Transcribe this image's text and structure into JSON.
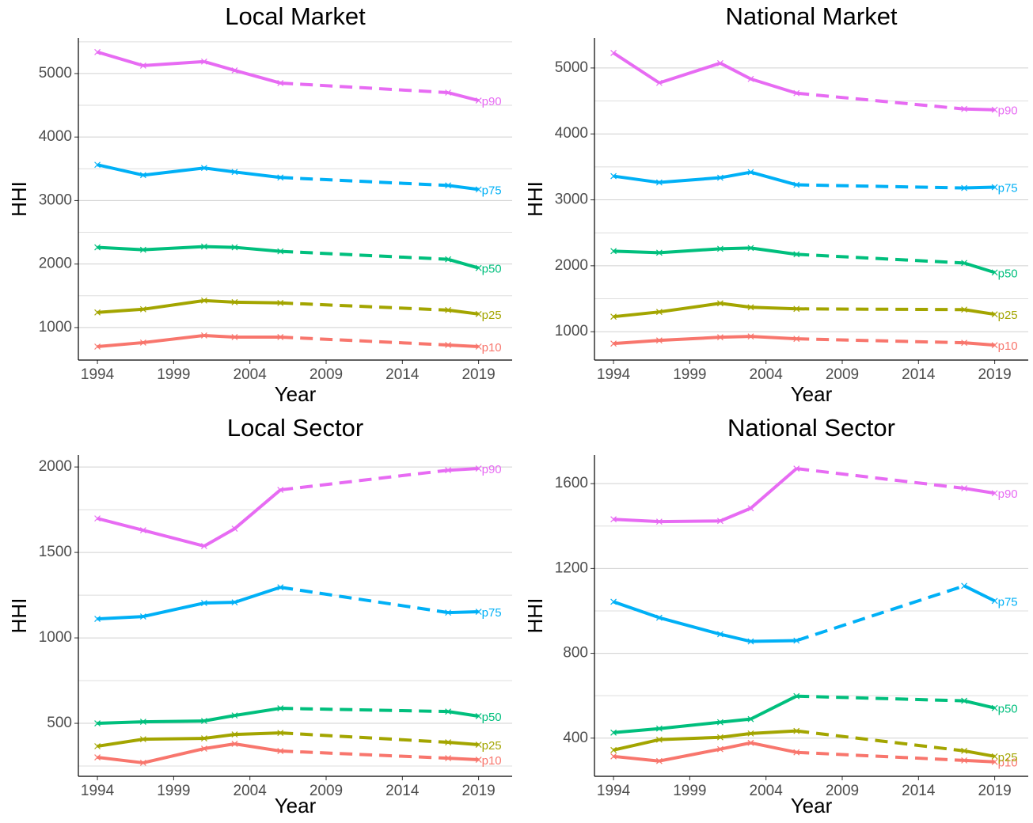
{
  "chart_data": [
    {
      "type": "line",
      "title": "Local Market",
      "x_label": "Year",
      "y_label": "HHI",
      "x": [
        1994,
        1997,
        2001,
        2003,
        2006,
        2017,
        2019
      ],
      "xlim": [
        1992.75,
        2021.2
      ],
      "xticks": [
        1994,
        1999,
        2004,
        2009,
        2014,
        2019
      ],
      "ylim": [
        488,
        5560
      ],
      "yticks": [
        1000,
        2000,
        3000,
        4000,
        5000
      ],
      "y_minor_grid": [
        1500,
        2500,
        3500,
        4500,
        5500
      ],
      "grid": true,
      "segment_dashed": [
        false,
        false,
        false,
        false,
        true,
        false
      ],
      "series": [
        {
          "name": "p10",
          "color": "#f8766d",
          "values": [
            700,
            763,
            875,
            850,
            850,
            725,
            700
          ]
        },
        {
          "name": "p25",
          "color": "#a3a500",
          "values": [
            1238,
            1288,
            1425,
            1400,
            1388,
            1275,
            1213
          ]
        },
        {
          "name": "p50",
          "color": "#00bf7d",
          "values": [
            2263,
            2225,
            2275,
            2263,
            2200,
            2075,
            1938
          ]
        },
        {
          "name": "p75",
          "color": "#00b0f6",
          "values": [
            3563,
            3400,
            3513,
            3450,
            3363,
            3238,
            3175
          ]
        },
        {
          "name": "p90",
          "color": "#e76bf3",
          "values": [
            5338,
            5125,
            5188,
            5050,
            4850,
            4700,
            4575
          ]
        }
      ]
    },
    {
      "type": "line",
      "title": "National Market",
      "x_label": "Year",
      "y_label": "HHI",
      "x": [
        1994,
        1997,
        2001,
        2003,
        2006,
        2017,
        2019
      ],
      "xlim": [
        1992.75,
        2021.2
      ],
      "xticks": [
        1994,
        1999,
        2004,
        2009,
        2014,
        2019
      ],
      "ylim": [
        570,
        5455
      ],
      "yticks": [
        1000,
        2000,
        3000,
        4000,
        5000
      ],
      "y_minor_grid": [
        1500,
        2500,
        3500,
        4500
      ],
      "grid": true,
      "segment_dashed": [
        false,
        false,
        false,
        false,
        true,
        false
      ],
      "series": [
        {
          "name": "p10",
          "color": "#f8766d",
          "values": [
            820,
            868,
            916,
            928,
            892,
            832,
            796
          ]
        },
        {
          "name": "p25",
          "color": "#a3a500",
          "values": [
            1228,
            1300,
            1431,
            1371,
            1347,
            1335,
            1264
          ]
        },
        {
          "name": "p50",
          "color": "#00bf7d",
          "values": [
            2222,
            2198,
            2258,
            2270,
            2174,
            2042,
            1898
          ]
        },
        {
          "name": "p75",
          "color": "#00b0f6",
          "values": [
            3360,
            3264,
            3336,
            3420,
            3228,
            3180,
            3192
          ]
        },
        {
          "name": "p90",
          "color": "#e76bf3",
          "values": [
            5228,
            4774,
            5073,
            4834,
            4618,
            4378,
            4366
          ]
        }
      ]
    },
    {
      "type": "line",
      "title": "Local Sector",
      "x_label": "Year",
      "y_label": "HHI",
      "x": [
        1994,
        1997,
        2001,
        2003,
        2006,
        2017,
        2019
      ],
      "xlim": [
        1992.75,
        2021.2
      ],
      "xticks": [
        1994,
        1999,
        2004,
        2009,
        2014,
        2019
      ],
      "ylim": [
        190,
        2070
      ],
      "yticks": [
        500,
        1000,
        1500,
        2000
      ],
      "y_minor_grid": [
        250,
        750,
        1250,
        1750
      ],
      "grid": true,
      "segment_dashed": [
        false,
        false,
        false,
        false,
        true,
        false
      ],
      "series": [
        {
          "name": "p10",
          "color": "#f8766d",
          "values": [
            301,
            269,
            352,
            380,
            338,
            296,
            287
          ]
        },
        {
          "name": "p25",
          "color": "#a3a500",
          "values": [
            366,
            407,
            412,
            435,
            444,
            389,
            375
          ]
        },
        {
          "name": "p50",
          "color": "#00bf7d",
          "values": [
            500,
            509,
            514,
            546,
            588,
            569,
            542
          ]
        },
        {
          "name": "p75",
          "color": "#00b0f6",
          "values": [
            1111,
            1125,
            1204,
            1208,
            1296,
            1148,
            1153
          ]
        },
        {
          "name": "p90",
          "color": "#e76bf3",
          "values": [
            1699,
            1630,
            1537,
            1639,
            1866,
            1981,
            1991
          ]
        }
      ]
    },
    {
      "type": "line",
      "title": "National Sector",
      "x_label": "Year",
      "y_label": "HHI",
      "x": [
        1994,
        1997,
        2001,
        2003,
        2006,
        2017,
        2019
      ],
      "xlim": [
        1992.75,
        2021.2
      ],
      "xticks": [
        1994,
        1999,
        2004,
        2009,
        2014,
        2019
      ],
      "ylim": [
        220,
        1735
      ],
      "yticks": [
        400,
        800,
        1200,
        1600
      ],
      "y_minor_grid": [
        600,
        1000,
        1400
      ],
      "grid": true,
      "segment_dashed": [
        false,
        false,
        false,
        false,
        true,
        false
      ],
      "series": [
        {
          "name": "p10",
          "color": "#f8766d",
          "values": [
            314,
            292,
            348,
            378,
            333,
            295,
            288
          ]
        },
        {
          "name": "p25",
          "color": "#a3a500",
          "values": [
            344,
            393,
            404,
            422,
            434,
            340,
            314
          ]
        },
        {
          "name": "p50",
          "color": "#00bf7d",
          "values": [
            426,
            445,
            475,
            490,
            598,
            576,
            542
          ]
        },
        {
          "name": "p75",
          "color": "#00b0f6",
          "values": [
            1043,
            968,
            890,
            856,
            860,
            1118,
            1047
          ]
        },
        {
          "name": "p90",
          "color": "#e76bf3",
          "values": [
            1432,
            1421,
            1424,
            1484,
            1671,
            1578,
            1555
          ]
        }
      ]
    }
  ]
}
